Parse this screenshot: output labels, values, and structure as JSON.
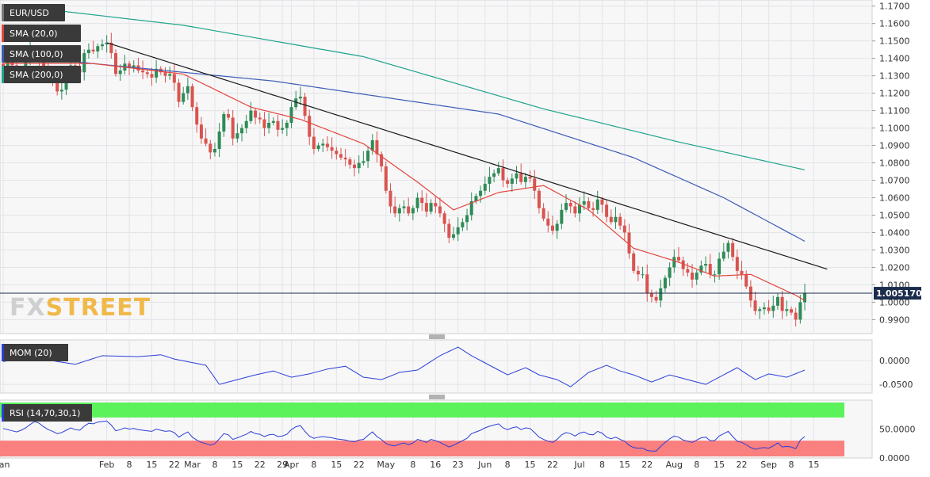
{
  "colors": {
    "bg": "#ffffff",
    "plot_bg": "#f7f7f8",
    "grid": "#e3e4e8",
    "up": "#2e8b57",
    "down": "#d9534f",
    "sma20": "#e5443c",
    "sma100": "#3b5bb5",
    "sma200": "#1ea38a",
    "trend": "#1a1a1a",
    "price_line": "#1c2c4c",
    "mom": "#2b3fd6",
    "rsi": "#2b3fd6",
    "rsi_over": "#5cf25c",
    "rsi_under": "#fa7f7f",
    "label_bg": "#3a3a3a",
    "axis_text": "#333333",
    "watermark": "#cfcfcf",
    "watermark_accent": "#f1b94a"
  },
  "watermark": {
    "text_a": "FX",
    "text_b": "STREET"
  },
  "main": {
    "labels": [
      {
        "text": "EUR/USD",
        "marker": "#777777"
      },
      {
        "text": "SMA (20,0)",
        "marker": "#e5443c"
      },
      {
        "text": "SMA (100,0)",
        "marker": "#3b5bb5"
      },
      {
        "text": "SMA (200,0)",
        "marker": "#1ea38a"
      }
    ],
    "current_price": "1.005170"
  },
  "mom": {
    "label": "MOM (20)",
    "marker": "#2b3fd6",
    "ticks": [
      "0.0000",
      "-0.0500"
    ]
  },
  "rsi": {
    "label": "RSI (14,70,30,1)",
    "marker": "#2b3fd6",
    "ticks": [
      "50.0000",
      "0.0000"
    ]
  },
  "chart_data": [
    {
      "type": "candlestick",
      "title": "EUR/USD",
      "ylim": [
        0.982,
        1.1735
      ],
      "y_ticks": [
        "1.1700",
        "1.1600",
        "1.1500",
        "1.1400",
        "1.1300",
        "1.1200",
        "1.1100",
        "1.1000",
        "1.0900",
        "1.0800",
        "1.0700",
        "1.0600",
        "1.0500",
        "1.0400",
        "1.0300",
        "1.0200",
        "1.0100",
        "1.0000",
        "0.9900"
      ],
      "x_ticks": [
        "Jan",
        "Feb",
        "8",
        "15",
        "22",
        "Mar",
        "8",
        "15",
        "22",
        "29",
        "Apr",
        "8",
        "15",
        "22",
        "May",
        "8",
        "16",
        "23",
        "Jun",
        "8",
        "15",
        "22",
        "Jul",
        "8",
        "15",
        "22",
        "Aug",
        "8",
        "15",
        "22",
        "Sep",
        "8",
        "15"
      ],
      "x_tick_pos": [
        0,
        23,
        28,
        33,
        38,
        42,
        47,
        52,
        57,
        62,
        64,
        69,
        74,
        79,
        85,
        91,
        96,
        101,
        107,
        112,
        117,
        122,
        128,
        133,
        138,
        143,
        149,
        154,
        159,
        164,
        170,
        175,
        180
      ],
      "closes": [
        1.134,
        1.138,
        1.136,
        1.131,
        1.132,
        1.14,
        1.146,
        1.144,
        1.138,
        1.135,
        1.13,
        1.128,
        1.121,
        1.122,
        1.13,
        1.136,
        1.134,
        1.132,
        1.143,
        1.145,
        1.144,
        1.147,
        1.148,
        1.149,
        1.143,
        1.131,
        1.133,
        1.137,
        1.135,
        1.136,
        1.133,
        1.132,
        1.131,
        1.129,
        1.134,
        1.132,
        1.13,
        1.131,
        1.126,
        1.115,
        1.12,
        1.124,
        1.112,
        1.102,
        1.094,
        1.091,
        1.086,
        1.088,
        1.098,
        1.108,
        1.106,
        1.094,
        1.097,
        1.1,
        1.104,
        1.11,
        1.106,
        1.105,
        1.1,
        1.103,
        1.104,
        1.099,
        1.1,
        1.103,
        1.112,
        1.117,
        1.118,
        1.107,
        1.095,
        1.088,
        1.09,
        1.091,
        1.089,
        1.087,
        1.085,
        1.083,
        1.082,
        1.079,
        1.077,
        1.08,
        1.081,
        1.087,
        1.093,
        1.085,
        1.078,
        1.064,
        1.055,
        1.051,
        1.054,
        1.055,
        1.051,
        1.054,
        1.06,
        1.057,
        1.052,
        1.057,
        1.055,
        1.051,
        1.045,
        1.037,
        1.039,
        1.043,
        1.046,
        1.05,
        1.058,
        1.061,
        1.064,
        1.068,
        1.072,
        1.074,
        1.077,
        1.07,
        1.068,
        1.071,
        1.074,
        1.069,
        1.072,
        1.071,
        1.064,
        1.054,
        1.048,
        1.044,
        1.041,
        1.045,
        1.053,
        1.057,
        1.055,
        1.051,
        1.056,
        1.058,
        1.054,
        1.053,
        1.059,
        1.056,
        1.049,
        1.046,
        1.049,
        1.044,
        1.04,
        1.028,
        1.018,
        1.016,
        1.016,
        1.005,
        1.003,
        1.001,
        1.008,
        1.014,
        1.02,
        1.026,
        1.024,
        1.019,
        1.017,
        1.013,
        1.017,
        1.021,
        1.022,
        1.016,
        1.016,
        1.025,
        1.029,
        1.034,
        1.026,
        1.018,
        1.016,
        1.009,
        1.001,
        0.995,
        0.996,
        0.997,
        0.995,
        0.998,
        1.003,
        0.995,
        0.996,
        0.994,
        0.99,
        1.0,
        1.005
      ]
    },
    {
      "type": "line",
      "name": "SMA (20,0)",
      "anchors": [
        [
          0,
          1.137
        ],
        [
          20,
          1.137
        ],
        [
          40,
          1.131
        ],
        [
          55,
          1.112
        ],
        [
          66,
          1.105
        ],
        [
          80,
          1.091
        ],
        [
          92,
          1.069
        ],
        [
          100,
          1.053
        ],
        [
          110,
          1.063
        ],
        [
          120,
          1.067
        ],
        [
          130,
          1.053
        ],
        [
          140,
          1.031
        ],
        [
          150,
          1.023
        ],
        [
          158,
          1.015
        ],
        [
          166,
          1.016
        ],
        [
          176,
          1.004
        ],
        [
          178,
          1.001
        ]
      ]
    },
    {
      "type": "line",
      "name": "SMA (100,0)",
      "anchors": [
        [
          0,
          1.142
        ],
        [
          60,
          1.127
        ],
        [
          110,
          1.108
        ],
        [
          140,
          1.083
        ],
        [
          160,
          1.06
        ],
        [
          178,
          1.035
        ]
      ]
    },
    {
      "type": "line",
      "name": "SMA (200,0)",
      "anchors": [
        [
          0,
          1.171
        ],
        [
          40,
          1.159
        ],
        [
          80,
          1.141
        ],
        [
          120,
          1.111
        ],
        [
          150,
          1.092
        ],
        [
          178,
          1.076
        ]
      ]
    },
    {
      "type": "line",
      "name": "trend",
      "anchors": [
        [
          23,
          1.149
        ],
        [
          183,
          1.019
        ]
      ]
    },
    {
      "type": "line",
      "name": "MOM (20)",
      "ylim": [
        -0.068,
        0.043
      ],
      "anchors": [
        [
          0,
          -0.002
        ],
        [
          6,
          0.006
        ],
        [
          10,
          0.001
        ],
        [
          16,
          -0.008
        ],
        [
          22,
          0.01
        ],
        [
          30,
          0.008
        ],
        [
          35,
          0.012
        ],
        [
          38,
          0.003
        ],
        [
          45,
          -0.01
        ],
        [
          48,
          -0.05
        ],
        [
          52,
          -0.04
        ],
        [
          56,
          -0.03
        ],
        [
          60,
          -0.022
        ],
        [
          64,
          -0.035
        ],
        [
          68,
          -0.028
        ],
        [
          72,
          -0.018
        ],
        [
          76,
          -0.012
        ],
        [
          80,
          -0.035
        ],
        [
          84,
          -0.04
        ],
        [
          88,
          -0.025
        ],
        [
          92,
          -0.02
        ],
        [
          97,
          0.01
        ],
        [
          101,
          0.028
        ],
        [
          104,
          0.01
        ],
        [
          108,
          -0.01
        ],
        [
          112,
          -0.03
        ],
        [
          116,
          -0.015
        ],
        [
          119,
          -0.03
        ],
        [
          123,
          -0.04
        ],
        [
          126,
          -0.055
        ],
        [
          130,
          -0.025
        ],
        [
          134,
          -0.01
        ],
        [
          137,
          -0.022
        ],
        [
          140,
          -0.03
        ],
        [
          144,
          -0.045
        ],
        [
          148,
          -0.03
        ],
        [
          152,
          -0.04
        ],
        [
          156,
          -0.05
        ],
        [
          160,
          -0.03
        ],
        [
          163,
          -0.015
        ],
        [
          167,
          -0.04
        ],
        [
          170,
          -0.028
        ],
        [
          174,
          -0.035
        ],
        [
          178,
          -0.02
        ]
      ]
    },
    {
      "type": "line",
      "name": "RSI (14,70,30,1)",
      "ylim": [
        0,
        100
      ],
      "bands": [
        70,
        30
      ],
      "values": [
        51,
        49,
        47,
        45,
        48,
        52,
        58,
        63,
        60,
        54,
        49,
        46,
        42,
        44,
        48,
        52,
        49,
        48,
        55,
        60,
        59,
        62,
        63,
        64,
        57,
        47,
        49,
        52,
        50,
        51,
        49,
        48,
        47,
        46,
        50,
        48,
        46,
        47,
        44,
        36,
        41,
        45,
        36,
        31,
        27,
        25,
        22,
        25,
        33,
        42,
        40,
        32,
        35,
        38,
        41,
        46,
        42,
        41,
        37,
        40,
        41,
        37,
        38,
        41,
        49,
        54,
        56,
        46,
        38,
        34,
        36,
        37,
        36,
        35,
        33,
        32,
        31,
        29,
        28,
        31,
        32,
        39,
        45,
        37,
        32,
        25,
        22,
        21,
        24,
        26,
        23,
        26,
        32,
        30,
        27,
        32,
        30,
        27,
        23,
        19,
        22,
        26,
        30,
        34,
        42,
        45,
        48,
        52,
        55,
        57,
        59,
        52,
        49,
        52,
        54,
        49,
        52,
        51,
        44,
        36,
        32,
        29,
        27,
        32,
        40,
        44,
        42,
        38,
        43,
        45,
        41,
        40,
        46,
        43,
        36,
        33,
        36,
        32,
        29,
        22,
        18,
        17,
        17,
        13,
        12,
        12,
        20,
        27,
        33,
        38,
        36,
        31,
        29,
        27,
        31,
        35,
        36,
        30,
        30,
        38,
        42,
        46,
        37,
        29,
        27,
        23,
        18,
        15,
        17,
        18,
        17,
        21,
        26,
        19,
        20,
        19,
        16,
        31,
        37
      ]
    }
  ]
}
